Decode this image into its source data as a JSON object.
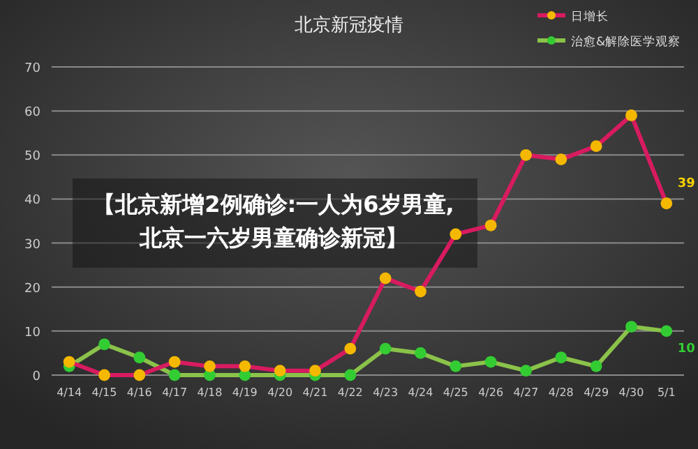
{
  "chart_data": {
    "type": "line",
    "title": "北京新冠疫情",
    "categories": [
      "4/14",
      "4/15",
      "4/16",
      "4/17",
      "4/18",
      "4/19",
      "4/20",
      "4/21",
      "4/22",
      "4/23",
      "4/24",
      "4/25",
      "4/26",
      "4/27",
      "4/28",
      "4/29",
      "4/30",
      "5/1"
    ],
    "series": [
      {
        "name": "日增长",
        "color": "#d81b60",
        "values": [
          3,
          0,
          0,
          3,
          2,
          2,
          1,
          1,
          6,
          22,
          19,
          32,
          34,
          50,
          49,
          52,
          59,
          39
        ],
        "value_labels": [
          null,
          null,
          null,
          null,
          null,
          null,
          null,
          null,
          null,
          null,
          null,
          null,
          null,
          null,
          null,
          null,
          null,
          "39"
        ]
      },
      {
        "name": "治愈&解除医学观察",
        "color": "#8bc34a",
        "values": [
          2,
          7,
          4,
          0,
          0,
          0,
          0,
          0,
          0,
          6,
          5,
          2,
          3,
          1,
          4,
          2,
          11,
          10
        ],
        "value_labels": [
          null,
          null,
          null,
          null,
          null,
          null,
          null,
          null,
          null,
          null,
          null,
          null,
          null,
          null,
          null,
          null,
          null,
          "10"
        ]
      }
    ],
    "ylim": [
      0,
      70
    ],
    "yticks": [
      0,
      10,
      20,
      30,
      40,
      50,
      60,
      70
    ],
    "grid": "y",
    "legend": "top right",
    "marker": "circle",
    "line_style": "solid",
    "annotations": [
      "【北京新增2例确诊:一人为6岁男童,北京一六岁男童确诊新冠】"
    ]
  }
}
